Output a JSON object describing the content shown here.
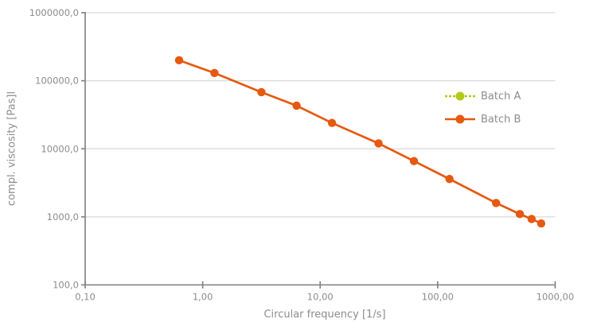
{
  "colors": {
    "background": "#ffffff",
    "grid": "#d9d9d9",
    "axis": "#7f7f7f",
    "text": "#8c8c8c",
    "batch_a": "#b4c818",
    "batch_b": "#e6590e"
  },
  "chart_data": {
    "type": "line",
    "title": "",
    "xlabel": "Circular frequency [1/s]",
    "ylabel": "compl. viscosity [Pas]l",
    "x_scale": "log",
    "y_scale": "log",
    "xlim": [
      0.1,
      1000
    ],
    "ylim": [
      100,
      1000000
    ],
    "grid": "horizontal",
    "legend_position": "inside-right",
    "x_ticks": [
      {
        "label": "0,10",
        "value": 0.1
      },
      {
        "label": "1,00",
        "value": 1
      },
      {
        "label": "10,00",
        "value": 10
      },
      {
        "label": "100,00",
        "value": 100
      },
      {
        "label": "1000,00",
        "value": 1000
      }
    ],
    "y_ticks": [
      {
        "label": "1000000,0",
        "value": 1000000
      },
      {
        "label": "100000,0",
        "value": 100000
      },
      {
        "label": "10000,0",
        "value": 10000
      },
      {
        "label": "1000,0",
        "value": 1000
      },
      {
        "label": "100,0",
        "value": 100
      }
    ],
    "x": [
      0.63,
      1.26,
      3.16,
      6.3,
      12.6,
      31.4,
      62.8,
      126,
      314,
      500,
      630,
      760
    ],
    "series": [
      {
        "name": "Batch A",
        "color": "#b4c818",
        "marker": "circle",
        "line_style": "dashed",
        "values": null,
        "note": "curve not separately visible in plot; coincides with / hidden behind Batch B"
      },
      {
        "name": "Batch B",
        "color": "#e6590e",
        "marker": "circle",
        "line_style": "solid",
        "values": [
          200000,
          130000,
          68000,
          43000,
          24000,
          12000,
          6600,
          3600,
          1600,
          1100,
          930,
          800
        ]
      }
    ]
  }
}
